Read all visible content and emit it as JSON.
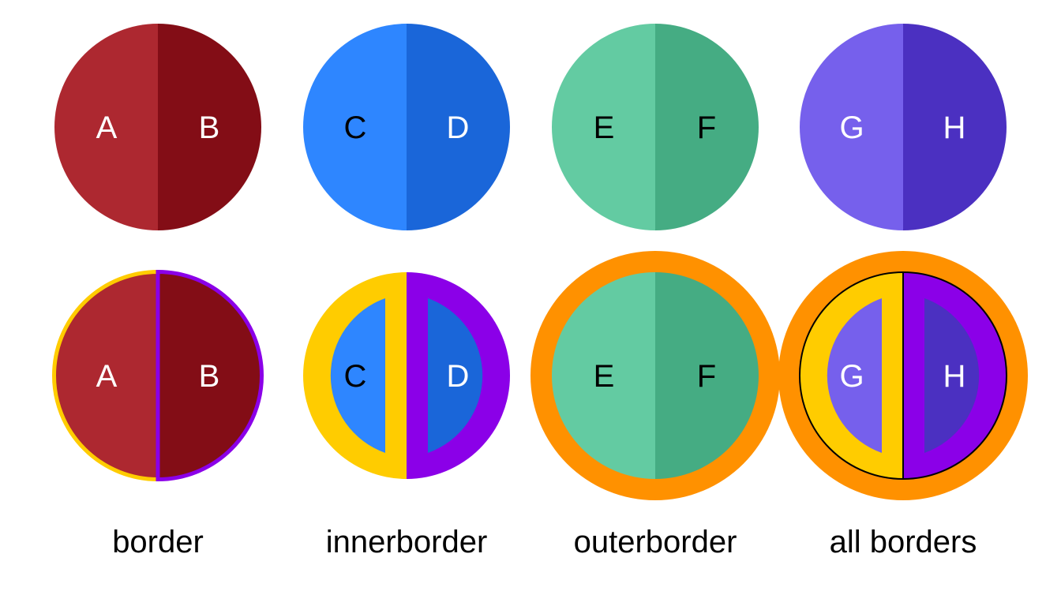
{
  "chart_data": {
    "type": "pie",
    "colors": {
      "border_left": "#FFCC00",
      "border_right": "#8B00E8",
      "outer_ring": "#FF9100",
      "divider": "#000000"
    },
    "rows": [
      [
        {
          "labels": [
            "A",
            "B"
          ],
          "colors": [
            "#AD2830",
            "#830D16"
          ],
          "label_colors": [
            "#ffffff",
            "#ffffff"
          ],
          "values": [
            50,
            50
          ]
        },
        {
          "labels": [
            "C",
            "D"
          ],
          "colors": [
            "#2E86FF",
            "#1A66D9"
          ],
          "label_colors": [
            "#000000",
            "#ffffff"
          ],
          "values": [
            50,
            50
          ]
        },
        {
          "labels": [
            "E",
            "F"
          ],
          "colors": [
            "#63CBA2",
            "#45AC83"
          ],
          "label_colors": [
            "#000000",
            "#000000"
          ],
          "values": [
            50,
            50
          ]
        },
        {
          "labels": [
            "G",
            "H"
          ],
          "colors": [
            "#7660EC",
            "#4B30C1"
          ],
          "label_colors": [
            "#ffffff",
            "#ffffff"
          ],
          "values": [
            50,
            50
          ]
        }
      ],
      [
        {
          "labels": [
            "A",
            "B"
          ],
          "colors": [
            "#AD2830",
            "#830D16"
          ],
          "label_colors": [
            "#ffffff",
            "#ffffff"
          ],
          "values": [
            50,
            50
          ],
          "variant": "border"
        },
        {
          "labels": [
            "C",
            "D"
          ],
          "colors": [
            "#2E86FF",
            "#1A66D9"
          ],
          "label_colors": [
            "#000000",
            "#ffffff"
          ],
          "values": [
            50,
            50
          ],
          "variant": "innerborder"
        },
        {
          "labels": [
            "E",
            "F"
          ],
          "colors": [
            "#63CBA2",
            "#45AC83"
          ],
          "label_colors": [
            "#000000",
            "#000000"
          ],
          "values": [
            50,
            50
          ],
          "variant": "outerborder"
        },
        {
          "labels": [
            "G",
            "H"
          ],
          "colors": [
            "#7660EC",
            "#4B30C1"
          ],
          "label_colors": [
            "#ffffff",
            "#ffffff"
          ],
          "values": [
            50,
            50
          ],
          "variant": "all"
        }
      ]
    ],
    "captions": [
      "border",
      "innerborder",
      "outerborder",
      "all borders"
    ]
  }
}
